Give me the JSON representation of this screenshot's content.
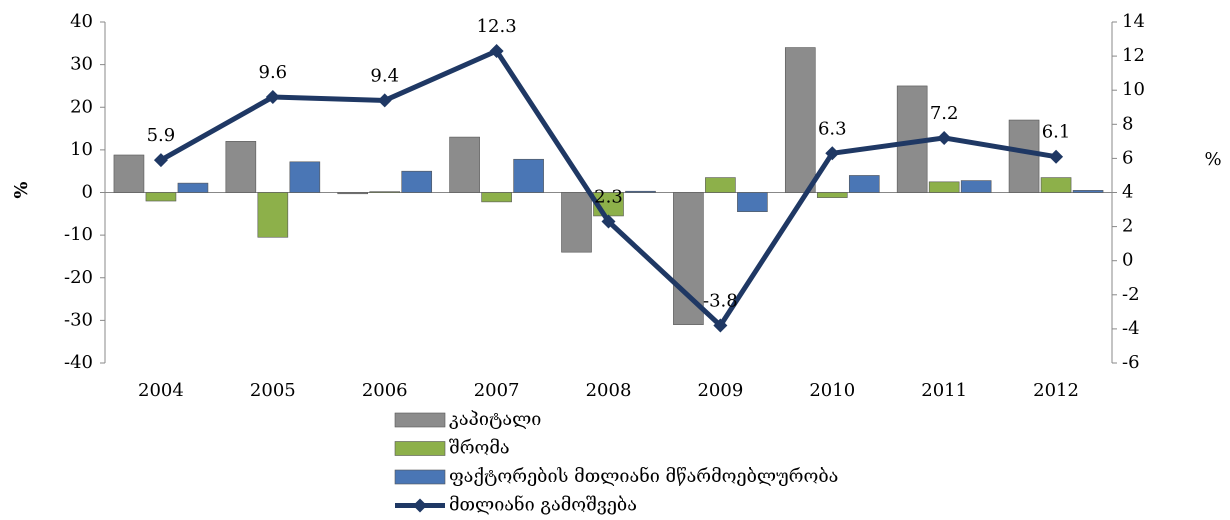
{
  "chart_data": {
    "type": "bar",
    "categories": [
      "2004",
      "2005",
      "2006",
      "2007",
      "2008",
      "2009",
      "2010",
      "2011",
      "2012"
    ],
    "ylabel": "%",
    "y2label": "%",
    "ylim": [
      -40,
      40
    ],
    "yticks": [
      -40,
      -30,
      -20,
      -10,
      0,
      10,
      20,
      30,
      40
    ],
    "y2lim": [
      -6,
      14
    ],
    "y2ticks": [
      -6,
      -4,
      -2,
      0,
      2,
      4,
      6,
      8,
      10,
      12,
      14
    ],
    "grid": false,
    "series": [
      {
        "name": "კაპიტალი",
        "color": "#8c8c8c",
        "values": [
          8.8,
          12,
          -0.3,
          13,
          -14,
          -31,
          34,
          25,
          17
        ]
      },
      {
        "name": "შრომა",
        "color": "#8db04a",
        "values": [
          -2,
          -10.5,
          0.2,
          -2.2,
          -5.5,
          3.5,
          -1.2,
          2.5,
          3.5
        ]
      },
      {
        "name": "ფაქტორების მთლიანი მწარმოებლურობა",
        "color": "#4a76b5",
        "values": [
          2.2,
          7.2,
          5,
          7.8,
          0.3,
          -4.5,
          4,
          2.8,
          0.5
        ]
      },
      {
        "name": "მთლიანი გამოშვება",
        "color": "#1f3864",
        "type": "line",
        "axis": "y2",
        "values": [
          5.9,
          9.6,
          9.4,
          12.3,
          2.3,
          -3.8,
          6.3,
          7.2,
          6.1
        ]
      }
    ]
  }
}
